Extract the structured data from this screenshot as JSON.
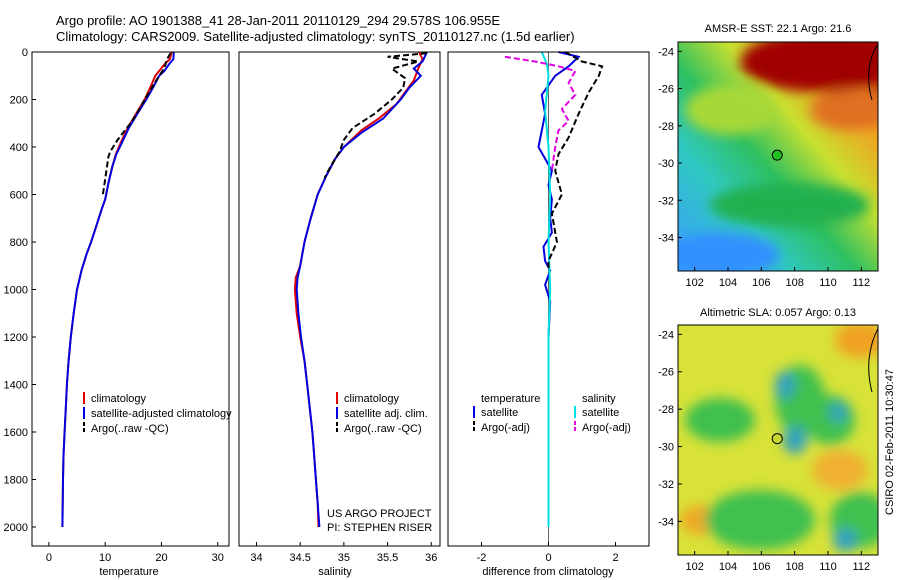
{
  "header": {
    "line1": "Argo profile: AO 1901388_41 28-Jan-2011 20110129_294 29.578S 106.955E",
    "line2": "Climatology: CARS2009. Satellite-adjusted climatology: synTS_20110127.nc (1.5d earlier)"
  },
  "side_label": "CSIRO 02-Feb-2011 10:30:47",
  "chart_data": [
    {
      "id": "temperature",
      "type": "line",
      "xlabel": "temperature",
      "ylabel": "",
      "xlim": [
        -3,
        32
      ],
      "ylim": [
        2080,
        0
      ],
      "xticks": [
        0,
        10,
        20,
        30
      ],
      "yticks": [
        0,
        200,
        400,
        600,
        800,
        1000,
        1200,
        1400,
        1600,
        1800,
        2000
      ],
      "legend": {
        "placement": "lower-center",
        "entries": [
          "climatology",
          "satellite-adjusted climatology",
          "Argo(..raw -QC)"
        ]
      },
      "series": [
        {
          "name": "climatology",
          "color": "#e00000",
          "style": "solid",
          "points": [
            [
              21.8,
              0
            ],
            [
              21.5,
              30
            ],
            [
              20.6,
              50
            ],
            [
              19.6,
              80
            ],
            [
              18.9,
              100
            ],
            [
              18.0,
              150
            ],
            [
              17.0,
              200
            ],
            [
              15.5,
              260
            ],
            [
              14.0,
              320
            ],
            [
              12.8,
              380
            ],
            [
              11.9,
              430
            ],
            [
              11.3,
              480
            ],
            [
              10.6,
              550
            ],
            [
              10.0,
              620
            ],
            [
              9.4,
              660
            ],
            [
              8.6,
              720
            ],
            [
              7.5,
              800
            ],
            [
              6.7,
              850
            ],
            [
              5.8,
              920
            ],
            [
              5.0,
              1000
            ],
            [
              4.4,
              1100
            ],
            [
              3.9,
              1200
            ],
            [
              3.5,
              1300
            ],
            [
              3.2,
              1400
            ],
            [
              3.0,
              1500
            ],
            [
              2.8,
              1600
            ],
            [
              2.6,
              1700
            ],
            [
              2.5,
              1800
            ],
            [
              2.45,
              1900
            ],
            [
              2.4,
              2000
            ]
          ]
        },
        {
          "name": "satellite-adjusted climatology",
          "color": "#0000e0",
          "style": "solid",
          "points": [
            [
              22.2,
              0
            ],
            [
              22.1,
              30
            ],
            [
              21.4,
              50
            ],
            [
              20.5,
              80
            ],
            [
              19.6,
              100
            ],
            [
              18.5,
              150
            ],
            [
              17.3,
              200
            ],
            [
              15.7,
              260
            ],
            [
              14.2,
              320
            ],
            [
              13.0,
              380
            ],
            [
              12.0,
              430
            ],
            [
              11.3,
              480
            ],
            [
              10.6,
              550
            ],
            [
              10.0,
              620
            ],
            [
              9.4,
              660
            ],
            [
              8.6,
              720
            ],
            [
              7.5,
              800
            ],
            [
              6.7,
              850
            ],
            [
              5.8,
              920
            ],
            [
              5.0,
              1000
            ],
            [
              4.4,
              1100
            ],
            [
              3.9,
              1200
            ],
            [
              3.5,
              1300
            ],
            [
              3.2,
              1400
            ],
            [
              3.0,
              1500
            ],
            [
              2.8,
              1600
            ],
            [
              2.6,
              1700
            ],
            [
              2.5,
              1800
            ],
            [
              2.45,
              1900
            ],
            [
              2.4,
              2000
            ]
          ]
        },
        {
          "name": "Argo(..raw -QC)",
          "color": "#000000",
          "style": "dashed",
          "points": [
            [
              21.6,
              5
            ],
            [
              21.0,
              30
            ],
            [
              20.6,
              60
            ],
            [
              20.2,
              80
            ],
            [
              19.6,
              100
            ],
            [
              18.8,
              130
            ],
            [
              17.8,
              170
            ],
            [
              16.8,
              210
            ],
            [
              15.6,
              260
            ],
            [
              14.5,
              300
            ],
            [
              13.5,
              330
            ],
            [
              12.2,
              370
            ],
            [
              11.4,
              400
            ],
            [
              10.9,
              420
            ],
            [
              10.6,
              440
            ],
            [
              10.4,
              470
            ],
            [
              10.1,
              520
            ],
            [
              9.6,
              600
            ]
          ]
        }
      ]
    },
    {
      "id": "salinity",
      "type": "line",
      "xlabel": "salinity",
      "ylabel": "",
      "xlim": [
        33.8,
        36.1
      ],
      "ylim": [
        2080,
        0
      ],
      "xticks": [
        34,
        34.5,
        35,
        35.5,
        36
      ],
      "yticks": [],
      "legend": {
        "placement": "lower-center",
        "entries": [
          "climatology",
          "satellite adj. clim.",
          "Argo(..raw -QC)"
        ]
      },
      "annotations": [
        "US ARGO PROJECT",
        "PI: STEPHEN RISER"
      ],
      "series": [
        {
          "name": "climatology",
          "color": "#e00000",
          "style": "solid",
          "points": [
            [
              35.86,
              0
            ],
            [
              35.9,
              30
            ],
            [
              35.85,
              70
            ],
            [
              35.8,
              120
            ],
            [
              35.7,
              170
            ],
            [
              35.6,
              220
            ],
            [
              35.4,
              280
            ],
            [
              35.2,
              330
            ],
            [
              35.0,
              400
            ],
            [
              34.9,
              450
            ],
            [
              34.8,
              520
            ],
            [
              34.7,
              600
            ],
            [
              34.62,
              700
            ],
            [
              34.55,
              800
            ],
            [
              34.5,
              900
            ],
            [
              34.45,
              950
            ],
            [
              34.44,
              1000
            ],
            [
              34.46,
              1100
            ],
            [
              34.5,
              1200
            ],
            [
              34.55,
              1300
            ],
            [
              34.58,
              1400
            ],
            [
              34.61,
              1500
            ],
            [
              34.64,
              1600
            ],
            [
              34.66,
              1700
            ],
            [
              34.68,
              1800
            ],
            [
              34.7,
              1900
            ],
            [
              34.71,
              2000
            ]
          ]
        },
        {
          "name": "satellite adj. clim.",
          "color": "#0000e0",
          "style": "solid",
          "points": [
            [
              35.95,
              0
            ],
            [
              35.9,
              40
            ],
            [
              35.8,
              70
            ],
            [
              35.88,
              100
            ],
            [
              35.75,
              150
            ],
            [
              35.65,
              200
            ],
            [
              35.45,
              280
            ],
            [
              35.2,
              340
            ],
            [
              35.0,
              400
            ],
            [
              34.9,
              450
            ],
            [
              34.8,
              520
            ],
            [
              34.7,
              600
            ],
            [
              34.62,
              700
            ],
            [
              34.55,
              800
            ],
            [
              34.5,
              900
            ],
            [
              34.47,
              950
            ],
            [
              34.46,
              1000
            ],
            [
              34.48,
              1100
            ],
            [
              34.51,
              1200
            ],
            [
              34.55,
              1300
            ],
            [
              34.58,
              1400
            ],
            [
              34.61,
              1500
            ],
            [
              34.64,
              1600
            ],
            [
              34.66,
              1700
            ],
            [
              34.68,
              1800
            ],
            [
              34.7,
              1900
            ],
            [
              34.72,
              2000
            ]
          ]
        },
        {
          "name": "Argo(..raw -QC)",
          "color": "#000000",
          "style": "dashed",
          "points": [
            [
              35.95,
              5
            ],
            [
              35.5,
              20
            ],
            [
              35.85,
              40
            ],
            [
              35.55,
              70
            ],
            [
              35.7,
              110
            ],
            [
              35.68,
              150
            ],
            [
              35.55,
              200
            ],
            [
              35.35,
              260
            ],
            [
              35.1,
              320
            ],
            [
              35.0,
              370
            ],
            [
              34.95,
              420
            ],
            [
              34.85,
              480
            ],
            [
              34.78,
              530
            ]
          ]
        }
      ]
    },
    {
      "id": "difference",
      "type": "line",
      "xlabel": "difference from climatology",
      "ylabel": "",
      "xlim": [
        -3,
        3
      ],
      "ylim": [
        2080,
        0
      ],
      "xticks": [
        -2,
        0,
        2
      ],
      "yticks": [],
      "legend": {
        "placement": "lower-center",
        "entries": [
          "temperature",
          "salinity",
          "satellite",
          "satellite",
          "Argo(-adj)",
          "Argo(-adj)"
        ]
      },
      "series": [
        {
          "name": "satellite",
          "color": "#0000e0",
          "style": "solid",
          "group": "temperature",
          "points": [
            [
              0.3,
              0
            ],
            [
              0.9,
              20
            ],
            [
              0.6,
              60
            ],
            [
              0.2,
              100
            ],
            [
              -0.2,
              180
            ],
            [
              -0.1,
              260
            ],
            [
              -0.3,
              400
            ],
            [
              0.1,
              500
            ],
            [
              0.0,
              560
            ],
            [
              0.1,
              620
            ],
            [
              0.05,
              700
            ],
            [
              0.1,
              760
            ],
            [
              -0.15,
              820
            ],
            [
              -0.1,
              880
            ],
            [
              0.05,
              920
            ],
            [
              -0.1,
              980
            ],
            [
              0.05,
              1050
            ],
            [
              0.0,
              1200
            ],
            [
              0.0,
              1400
            ],
            [
              0.0,
              2000
            ]
          ]
        },
        {
          "name": "satellite",
          "color": "#00e0e0",
          "style": "solid",
          "group": "salinity",
          "points": [
            [
              -0.2,
              0
            ],
            [
              -0.05,
              50
            ],
            [
              0.0,
              100
            ],
            [
              -0.1,
              250
            ],
            [
              0.0,
              400
            ],
            [
              0.05,
              600
            ],
            [
              0.0,
              800
            ],
            [
              0.05,
              1000
            ],
            [
              0.0,
              1200
            ],
            [
              0.0,
              2000
            ]
          ]
        },
        {
          "name": "Argo(-adj)",
          "color": "#000000",
          "style": "dashed",
          "group": "temperature",
          "points": [
            [
              0.5,
              0
            ],
            [
              1.0,
              40
            ],
            [
              1.6,
              60
            ],
            [
              1.5,
              100
            ],
            [
              1.2,
              170
            ],
            [
              0.9,
              260
            ],
            [
              0.6,
              360
            ],
            [
              0.3,
              430
            ],
            [
              0.2,
              500
            ],
            [
              0.4,
              600
            ],
            [
              0.1,
              680
            ],
            [
              0.25,
              800
            ],
            [
              0.0,
              880
            ],
            [
              0.0,
              920
            ]
          ]
        },
        {
          "name": "Argo(-adj)",
          "color": "#e000e0",
          "style": "dashed",
          "group": "salinity",
          "points": [
            [
              -1.3,
              20
            ],
            [
              -0.4,
              40
            ],
            [
              0.3,
              60
            ],
            [
              0.8,
              80
            ],
            [
              0.6,
              130
            ],
            [
              0.8,
              180
            ],
            [
              0.4,
              240
            ],
            [
              0.6,
              290
            ],
            [
              0.3,
              330
            ],
            [
              0.2,
              400
            ],
            [
              0.1,
              500
            ]
          ]
        }
      ]
    },
    {
      "id": "sst-map",
      "type": "heatmap",
      "title": "AMSR-E SST: 22.1 Argo: 21.6",
      "xlim": [
        101,
        113
      ],
      "ylim": [
        -35.8,
        -23.5
      ],
      "xticks": [
        102,
        104,
        106,
        108,
        110,
        112
      ],
      "yticks": [
        -24,
        -26,
        -28,
        -30,
        -32,
        -34
      ],
      "marker": {
        "lon": 106.955,
        "lat": -29.578
      }
    },
    {
      "id": "sla-map",
      "type": "heatmap",
      "title": "Altimetric SLA: 0.057 Argo: 0.13",
      "xlim": [
        101,
        113
      ],
      "ylim": [
        -35.8,
        -23.5
      ],
      "xticks": [
        102,
        104,
        106,
        108,
        110,
        112
      ],
      "yticks": [
        -24,
        -26,
        -28,
        -30,
        -32,
        -34
      ],
      "marker": {
        "lon": 106.955,
        "lat": -29.578
      }
    }
  ]
}
